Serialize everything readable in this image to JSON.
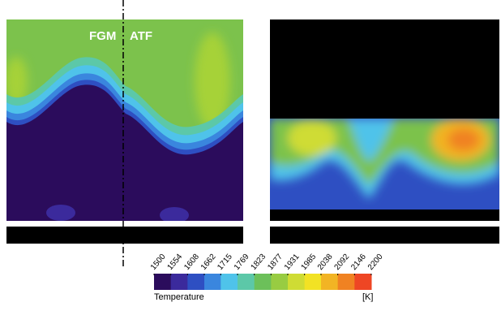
{
  "labels": {
    "left": "FGM",
    "right": "ATF"
  },
  "colorbar": {
    "title": "Temperature",
    "unit": "[K]",
    "lim": [
      1500,
      2200
    ],
    "ticks": [
      1500,
      1554,
      1608,
      1662,
      1715,
      1769,
      1823,
      1877,
      1931,
      1985,
      2038,
      2092,
      2146,
      2200
    ],
    "colors": [
      "#2b0c5c",
      "#3b2a9c",
      "#2e4fc2",
      "#3a86de",
      "#4fc3ea",
      "#5cc8a8",
      "#6cc05a",
      "#98cc42",
      "#cfdc34",
      "#f2e224",
      "#f2b424",
      "#f08222",
      "#ee4624"
    ]
  }
}
